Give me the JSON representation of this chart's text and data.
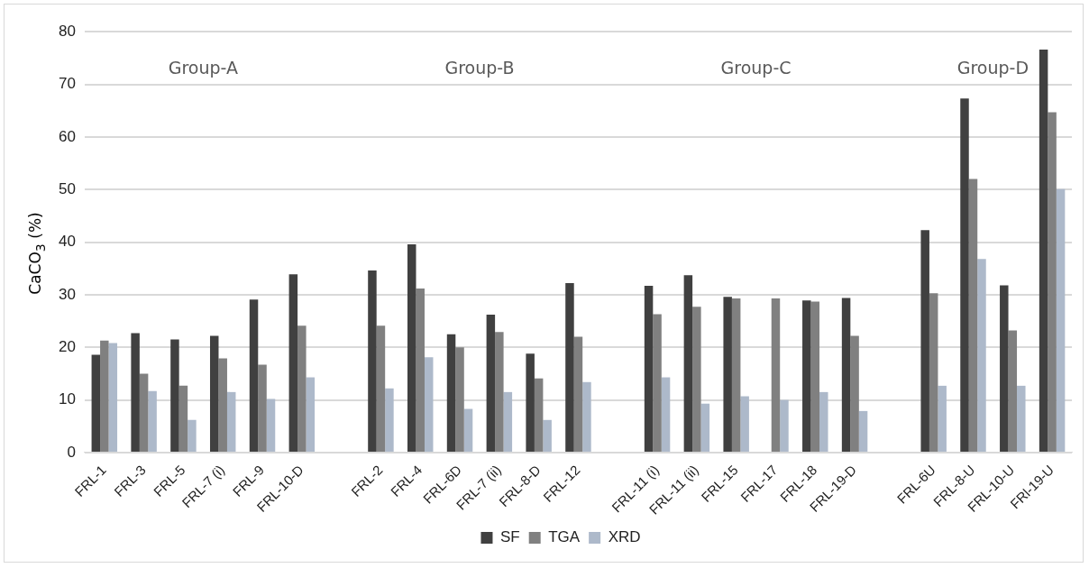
{
  "chart_data": {
    "type": "bar",
    "ylabel": "CaCO$_{3}$ (%)",
    "categories": [
      "FRL-1",
      "FRL-3",
      "FRL-5",
      "FRL-7 (i)",
      "FRL-9",
      "FRL-10-D",
      null,
      "FRL-2",
      "FRL-4",
      "FRL-6D",
      "FRL-7 (ii)",
      "FRL-8-D",
      "FRL-12",
      null,
      "FRL-11 (i)",
      "FRL-11 (ii)",
      "FRL-15",
      "FRL-17",
      "FRL-18",
      "FRL-19-D",
      null,
      "FRL-6U",
      "FRL-8-U",
      "FRL-10-U",
      "FRl-19-U"
    ],
    "series": [
      {
        "name": "SF",
        "color": "#404040",
        "values": [
          18.6,
          22.7,
          21.5,
          22.2,
          29.1,
          33.9,
          null,
          34.6,
          39.6,
          22.5,
          26.2,
          18.8,
          32.2,
          null,
          31.7,
          33.7,
          29.6,
          null,
          28.9,
          29.4,
          null,
          42.3,
          67.3,
          31.8,
          76.6
        ]
      },
      {
        "name": "TGA",
        "color": "#808080",
        "values": [
          21.3,
          15.0,
          12.7,
          17.9,
          16.7,
          24.1,
          null,
          24.1,
          31.2,
          20.0,
          22.9,
          14.1,
          22.0,
          null,
          26.3,
          27.7,
          29.3,
          29.3,
          28.7,
          22.2,
          null,
          30.3,
          52.0,
          23.2,
          64.7
        ]
      },
      {
        "name": "XRD",
        "color": "#adb9ca",
        "values": [
          20.8,
          11.7,
          6.2,
          11.5,
          10.2,
          14.3,
          null,
          12.2,
          18.1,
          8.3,
          11.5,
          6.2,
          13.4,
          null,
          14.3,
          9.3,
          10.7,
          10.0,
          11.5,
          7.9,
          null,
          12.7,
          36.8,
          12.7,
          50.1
        ]
      }
    ],
    "annotations": [
      "Group-A",
      "Group-B",
      "Group-C",
      "Group-D"
    ],
    "ylim": [
      0,
      80
    ],
    "yticks": [
      0,
      10,
      20,
      30,
      40,
      50,
      60,
      70,
      80
    ],
    "grid": "y",
    "legend": "bottom"
  }
}
